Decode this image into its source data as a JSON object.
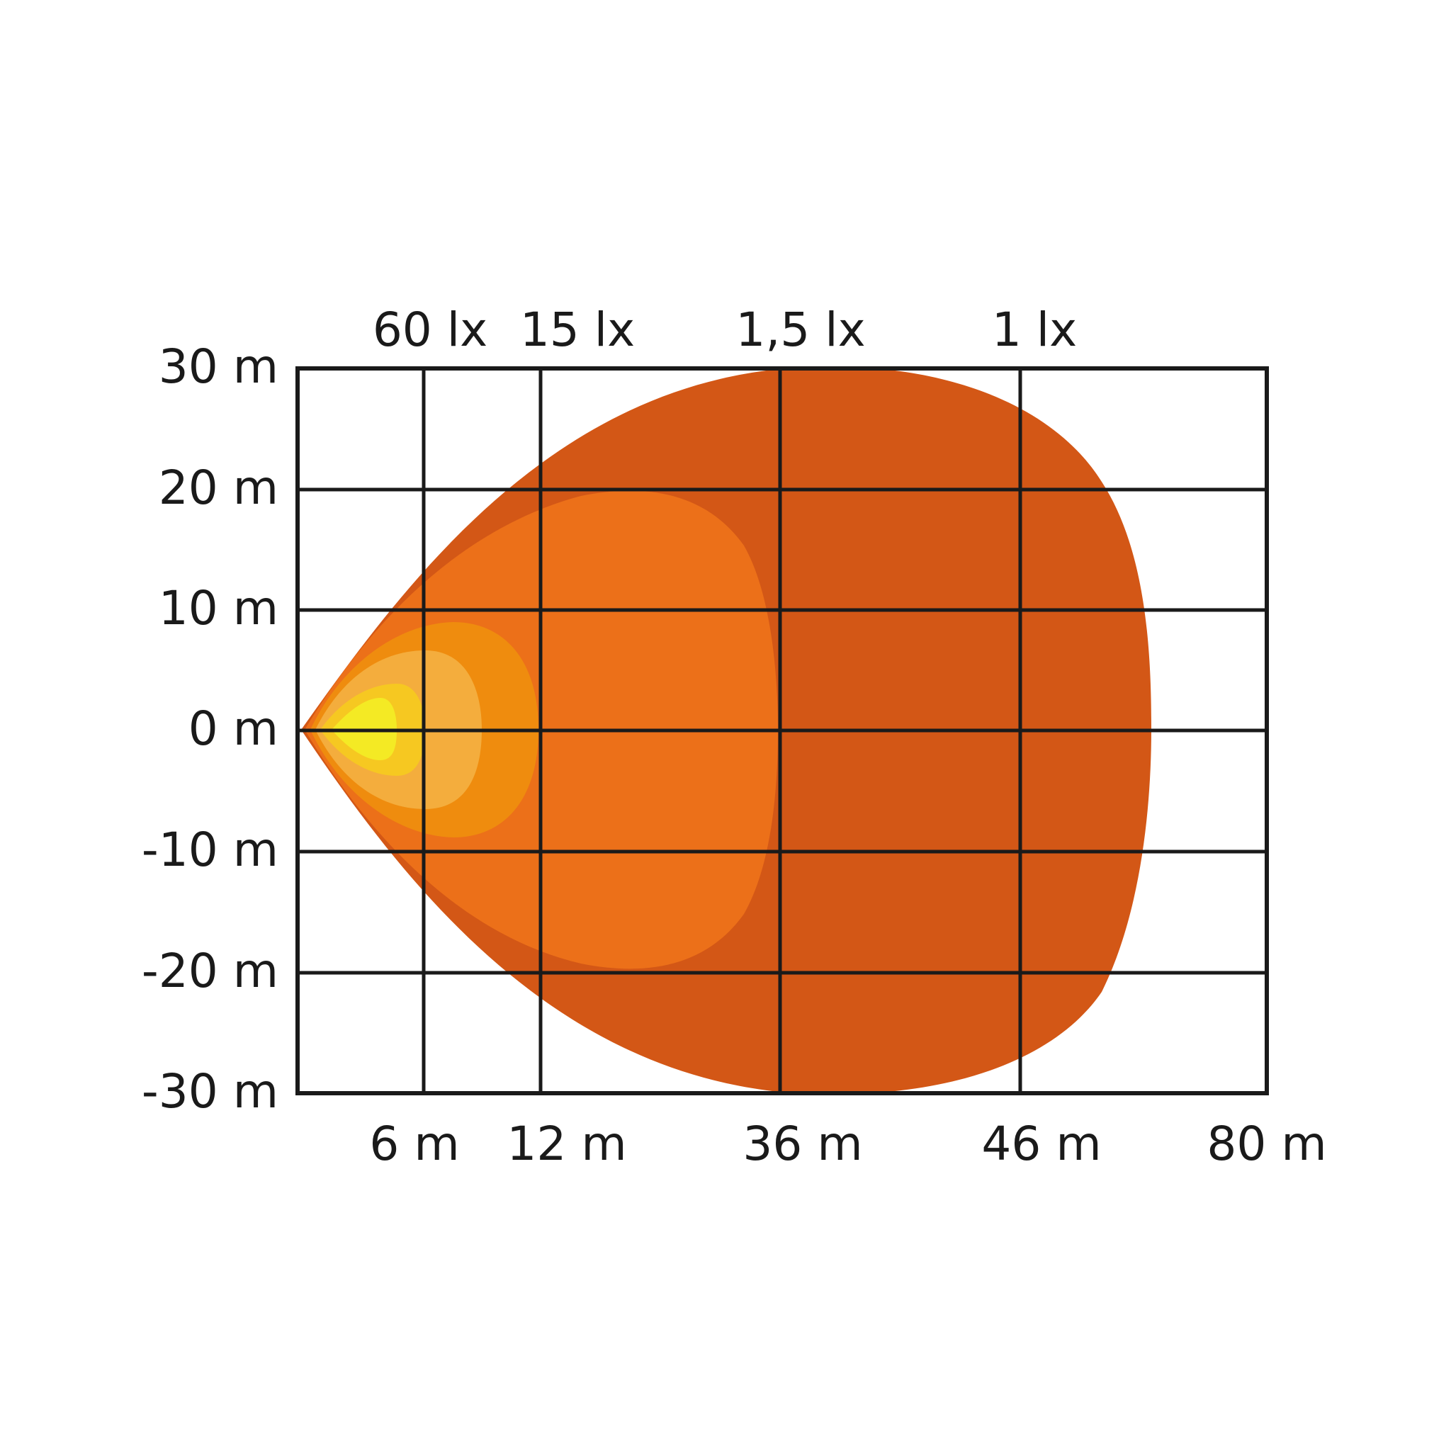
{
  "chart_data": {
    "type": "area",
    "title": "",
    "xlabel": "",
    "ylabel": "",
    "x_tick_labels": [
      "6 m",
      "12 m",
      "36 m",
      "46 m",
      "80 m"
    ],
    "y_tick_labels": [
      "30 m",
      "20 m",
      "10 m",
      "0 m",
      "-10 m",
      "-20 m",
      "-30 m"
    ],
    "y_ticks": [
      30,
      20,
      10,
      0,
      -10,
      -20,
      -30
    ],
    "ylim": [
      -30,
      30
    ],
    "grid": true,
    "zones": [
      {
        "name": "1 lx",
        "reach_m": 46,
        "color": "#d35716"
      },
      {
        "name": "1,5 lx",
        "reach_m": 36,
        "color": "#ec7019"
      },
      {
        "name": "15 lx",
        "reach_m": 12,
        "color": "#ef8c0e"
      },
      {
        "name": "60 lx",
        "reach_m": 6,
        "color": "#f4ad3d"
      },
      {
        "name": "",
        "color": "#f6c821"
      },
      {
        "name": "",
        "color": "#f4ea24"
      }
    ]
  }
}
